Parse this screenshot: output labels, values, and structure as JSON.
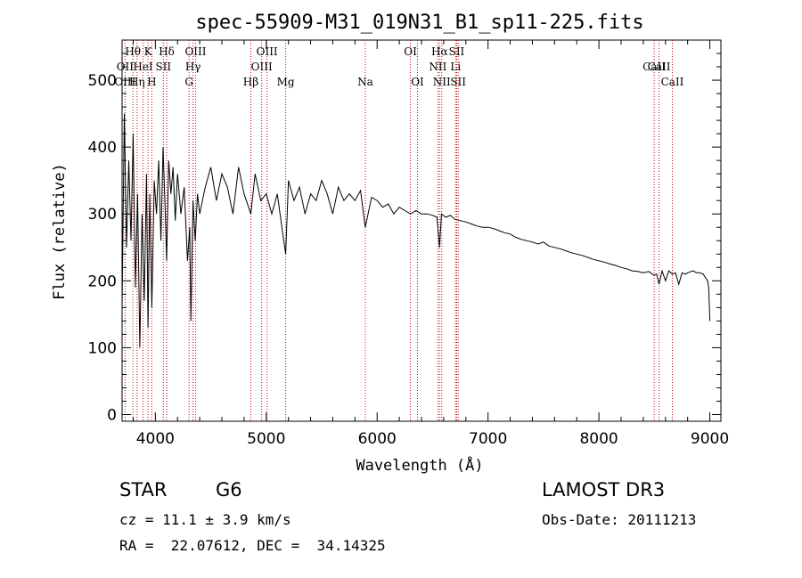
{
  "chart_data": {
    "type": "line",
    "title": "spec-55909-M31_019N31_B1_sp11-225.fits",
    "xlabel": "Wavelength (Å)",
    "ylabel": "Flux (relative)",
    "xlim": [
      3700,
      9100
    ],
    "ylim": [
      -10,
      560
    ],
    "xticks": [
      4000,
      5000,
      6000,
      7000,
      8000,
      9000
    ],
    "xtick_labels": [
      "4000",
      "5000",
      "6000",
      "7000",
      "8000",
      "9000"
    ],
    "yticks": [
      0,
      100,
      200,
      300,
      400,
      500
    ],
    "ytick_labels": [
      "0",
      "100",
      "200",
      "300",
      "400",
      "500"
    ],
    "grid": false,
    "line_color": "#000000",
    "marker_color": "#cc0000",
    "spectrum": {
      "name": "flux",
      "x": [
        3700,
        3720,
        3740,
        3760,
        3780,
        3800,
        3820,
        3840,
        3860,
        3880,
        3900,
        3920,
        3934,
        3950,
        3968,
        3990,
        4010,
        4030,
        4050,
        4070,
        4090,
        4102,
        4120,
        4140,
        4160,
        4180,
        4200,
        4230,
        4260,
        4290,
        4310,
        4320,
        4340,
        4360,
        4380,
        4400,
        4450,
        4500,
        4550,
        4600,
        4650,
        4700,
        4750,
        4800,
        4861,
        4900,
        4950,
        5000,
        5050,
        5100,
        5150,
        5175,
        5200,
        5250,
        5300,
        5350,
        5400,
        5450,
        5500,
        5550,
        5600,
        5650,
        5700,
        5750,
        5800,
        5850,
        5893,
        5950,
        6000,
        6050,
        6100,
        6150,
        6200,
        6250,
        6300,
        6350,
        6400,
        6450,
        6500,
        6540,
        6563,
        6580,
        6620,
        6660,
        6700,
        6750,
        6800,
        6850,
        6900,
        6950,
        7000,
        7050,
        7100,
        7150,
        7200,
        7250,
        7300,
        7350,
        7400,
        7450,
        7500,
        7550,
        7600,
        7650,
        7700,
        7750,
        7800,
        7850,
        7900,
        7950,
        8000,
        8050,
        8100,
        8150,
        8200,
        8250,
        8300,
        8350,
        8400,
        8450,
        8498,
        8520,
        8542,
        8570,
        8600,
        8630,
        8662,
        8690,
        8720,
        8750,
        8780,
        8800,
        8830,
        8850,
        8880,
        8910,
        8940,
        8960,
        8980,
        8990,
        9000
      ],
      "y": [
        160,
        450,
        250,
        380,
        260,
        420,
        190,
        330,
        100,
        300,
        170,
        360,
        130,
        330,
        160,
        350,
        300,
        380,
        260,
        400,
        300,
        230,
        380,
        330,
        370,
        290,
        360,
        300,
        340,
        230,
        280,
        140,
        320,
        260,
        330,
        300,
        340,
        370,
        320,
        360,
        340,
        300,
        370,
        330,
        300,
        360,
        320,
        330,
        300,
        330,
        270,
        240,
        350,
        320,
        340,
        300,
        330,
        320,
        350,
        330,
        300,
        340,
        320,
        330,
        320,
        335,
        280,
        325,
        320,
        310,
        315,
        300,
        310,
        305,
        300,
        305,
        300,
        300,
        298,
        295,
        250,
        300,
        295,
        298,
        292,
        290,
        288,
        285,
        282,
        280,
        280,
        278,
        275,
        272,
        270,
        265,
        262,
        260,
        258,
        255,
        258,
        252,
        250,
        248,
        245,
        242,
        240,
        238,
        235,
        232,
        230,
        228,
        225,
        223,
        220,
        218,
        215,
        214,
        212,
        214,
        208,
        210,
        195,
        215,
        200,
        215,
        210,
        212,
        195,
        212,
        210,
        212,
        214,
        215,
        212,
        212,
        210,
        205,
        200,
        190,
        140
      ]
    },
    "lines_upper": [
      {
        "label": "Hθ",
        "x": 3798
      },
      {
        "label": "K",
        "x": 3934
      },
      {
        "label": "Hδ",
        "x": 4102
      },
      {
        "label": "OIII",
        "x": 4363
      },
      {
        "label": "OIII",
        "x": 5007
      },
      {
        "label": "OI",
        "x": 6300
      },
      {
        "label": "Hα",
        "x": 6563
      },
      {
        "label": "SII",
        "x": 6717
      }
    ],
    "lines_middle": [
      {
        "label": "OII",
        "x": 3727
      },
      {
        "label": "HeI",
        "x": 3889
      },
      {
        "label": "SII",
        "x": 4072
      },
      {
        "label": "Hγ",
        "x": 4340
      },
      {
        "label": "OIII",
        "x": 4959
      },
      {
        "label": "NII",
        "x": 6548
      },
      {
        "label": "Li",
        "x": 6708
      },
      {
        "label": "CaII",
        "x": 8498
      },
      {
        "label": "CaII",
        "x": 8542
      }
    ],
    "lines_lower": [
      {
        "label": "OIII",
        "x": 3727
      },
      {
        "label": "Hη",
        "x": 3835
      },
      {
        "label": "H",
        "x": 3968
      },
      {
        "label": "G",
        "x": 4304
      },
      {
        "label": "Hβ",
        "x": 4861
      },
      {
        "label": "Mg",
        "x": 5175
      },
      {
        "label": "Na",
        "x": 5893
      },
      {
        "label": "OI",
        "x": 6364
      },
      {
        "label": "NII",
        "x": 6583
      },
      {
        "label": "SII",
        "x": 6731
      },
      {
        "label": "CaII",
        "x": 8662
      }
    ]
  },
  "info": {
    "class": "STAR",
    "subclass": "G6",
    "survey": "LAMOST DR3",
    "cz_line": "cz = 11.1 ± 3.9 km/s",
    "obs_date_line": "Obs-Date: 20111213",
    "radec_line": "RA =  22.07612, DEC =  34.14325"
  }
}
